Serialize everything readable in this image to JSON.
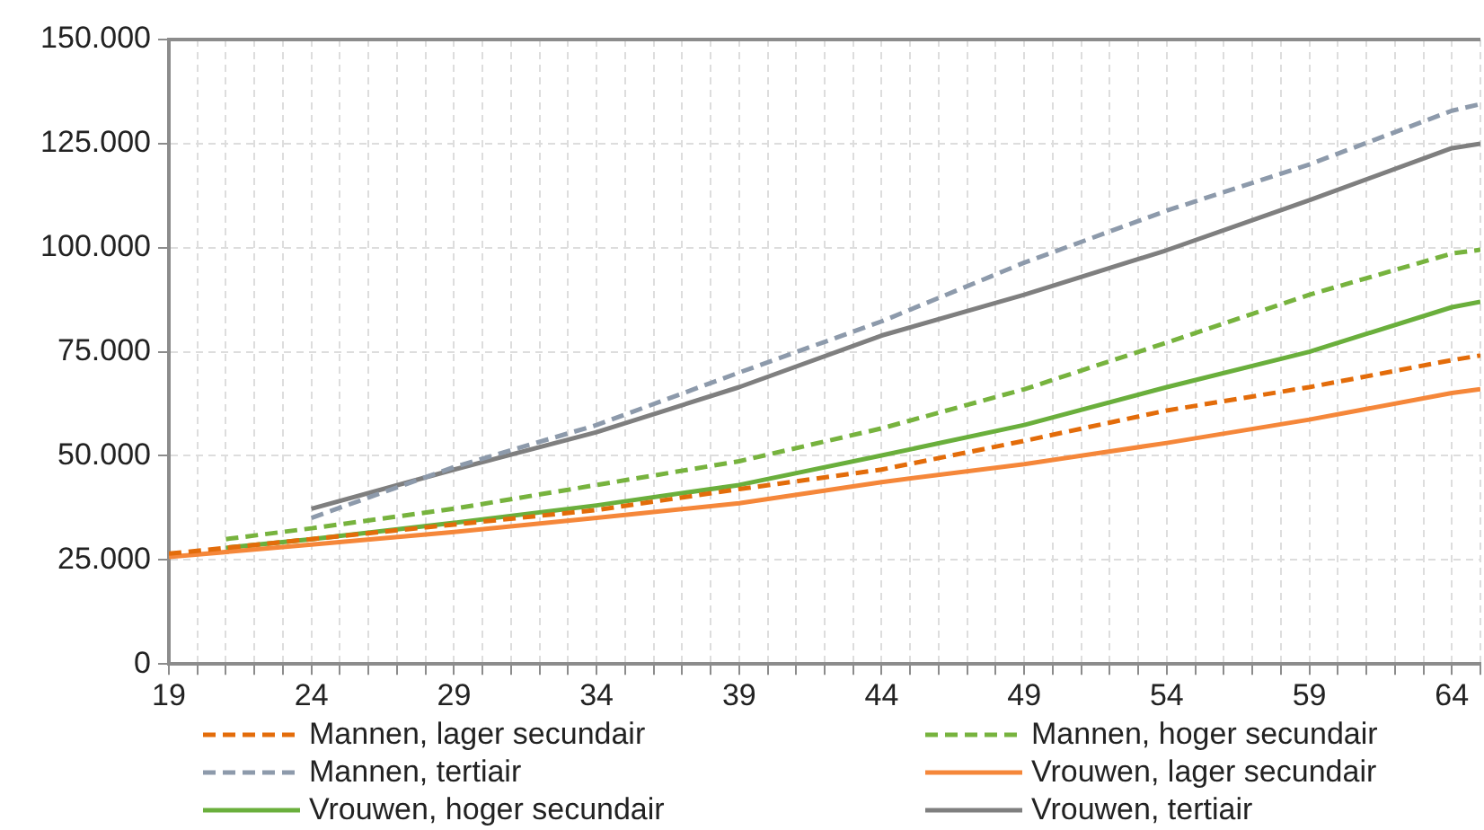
{
  "chart_data": {
    "type": "line",
    "xlim": [
      19,
      65
    ],
    "xticks": [
      19,
      {
        "value": 20,
        "label": null
      },
      {
        "value": 21,
        "label": null
      },
      {
        "value": 22,
        "label": null
      },
      {
        "value": 23,
        "label": null
      },
      24,
      {
        "value": 25,
        "label": null
      },
      {
        "value": 26,
        "label": null
      },
      {
        "value": 27,
        "label": null
      },
      {
        "value": 28,
        "label": null
      },
      29,
      {
        "value": 30,
        "label": null
      },
      {
        "value": 31,
        "label": null
      },
      {
        "value": 32,
        "label": null
      },
      {
        "value": 33,
        "label": null
      },
      34,
      {
        "value": 35,
        "label": null
      },
      {
        "value": 36,
        "label": null
      },
      {
        "value": 37,
        "label": null
      },
      {
        "value": 38,
        "label": null
      },
      39,
      {
        "value": 40,
        "label": null
      },
      {
        "value": 41,
        "label": null
      },
      {
        "value": 42,
        "label": null
      },
      {
        "value": 43,
        "label": null
      },
      44,
      {
        "value": 45,
        "label": null
      },
      {
        "value": 46,
        "label": null
      },
      {
        "value": 47,
        "label": null
      },
      {
        "value": 48,
        "label": null
      },
      49,
      {
        "value": 50,
        "label": null
      },
      {
        "value": 51,
        "label": null
      },
      {
        "value": 52,
        "label": null
      },
      {
        "value": 53,
        "label": null
      },
      54,
      {
        "value": 55,
        "label": null
      },
      {
        "value": 56,
        "label": null
      },
      {
        "value": 57,
        "label": null
      },
      {
        "value": 58,
        "label": null
      },
      59,
      {
        "value": 60,
        "label": null
      },
      {
        "value": 61,
        "label": null
      },
      {
        "value": 62,
        "label": null
      },
      {
        "value": 63,
        "label": null
      },
      64,
      {
        "value": 65,
        "label": null
      }
    ],
    "ylim": [
      0,
      150000
    ],
    "yticks": [
      0,
      {
        "value": 25000,
        "label": "25.000"
      },
      {
        "value": 50000,
        "label": "50.000"
      },
      {
        "value": 75000,
        "label": "75.000"
      },
      {
        "value": 100000,
        "label": "100.000"
      },
      {
        "value": 125000,
        "label": "125.000"
      },
      {
        "value": 150000,
        "label": "150.000"
      }
    ],
    "grid": true,
    "legend": "bottom",
    "marker": "none",
    "series": [
      {
        "name": "Mannen, lager secundair",
        "color": "#e36c0a",
        "line_style": "dashed",
        "x": [
          19,
          24,
          29,
          34,
          39,
          44,
          49,
          54,
          59,
          64,
          65
        ],
        "values": [
          26500,
          30000,
          33500,
          37000,
          42000,
          46700,
          53600,
          60900,
          66500,
          73000,
          74100
        ]
      },
      {
        "name": "Mannen, hoger secundair",
        "color": "#77b33e",
        "line_style": "dashed",
        "x": [
          21,
          24,
          29,
          34,
          39,
          44,
          49,
          54,
          59,
          64,
          65
        ],
        "values": [
          30000,
          32600,
          37300,
          43000,
          48700,
          56600,
          66000,
          77200,
          88700,
          98600,
          99500
        ]
      },
      {
        "name": "Mannen, tertiair",
        "color": "#8d9aab",
        "line_style": "dashed",
        "x": [
          24,
          29,
          34,
          39,
          44,
          49,
          54,
          59,
          64,
          65
        ],
        "values": [
          35100,
          47300,
          57400,
          70000,
          82300,
          96400,
          108900,
          120000,
          132900,
          134500
        ]
      },
      {
        "name": "Vrouwen, lager secundair",
        "color": "#f5873a",
        "line_style": "solid",
        "x": [
          19,
          24,
          29,
          34,
          39,
          44,
          49,
          54,
          59,
          64,
          65
        ],
        "values": [
          25700,
          28700,
          31700,
          35100,
          38600,
          43700,
          48000,
          53100,
          58700,
          65100,
          66000
        ]
      },
      {
        "name": "Vrouwen, hoger secundair",
        "color": "#6aaf3c",
        "line_style": "solid",
        "x": [
          21,
          24,
          29,
          34,
          39,
          44,
          49,
          54,
          59,
          64,
          65
        ],
        "values": [
          27900,
          30000,
          33900,
          38100,
          43000,
          50100,
          57400,
          66500,
          75000,
          85700,
          87000
        ]
      },
      {
        "name": "Vrouwen, tertiair",
        "color": "#7f7f7f",
        "line_style": "solid",
        "x": [
          24,
          29,
          34,
          39,
          44,
          49,
          54,
          59,
          64,
          65
        ],
        "values": [
          37300,
          46700,
          55700,
          66500,
          78900,
          88700,
          99400,
          111400,
          123900,
          125000
        ]
      }
    ]
  }
}
